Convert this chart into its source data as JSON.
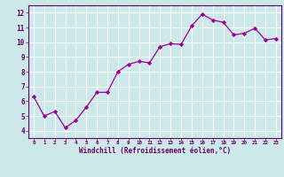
{
  "x": [
    0,
    1,
    2,
    3,
    4,
    5,
    6,
    7,
    8,
    9,
    10,
    11,
    12,
    13,
    14,
    15,
    16,
    17,
    18,
    19,
    20,
    21,
    22,
    23
  ],
  "y": [
    6.3,
    5.0,
    5.3,
    4.2,
    4.7,
    5.6,
    6.6,
    6.6,
    8.0,
    8.5,
    8.7,
    8.6,
    9.7,
    9.9,
    9.85,
    11.1,
    11.9,
    11.5,
    11.35,
    10.5,
    10.6,
    10.95,
    10.15,
    10.25
  ],
  "line_color": "#990099",
  "marker": "D",
  "marker_size": 2.2,
  "bg_color": "#cce8e8",
  "grid_color": "#ffffff",
  "ylabel_vals": [
    4,
    5,
    6,
    7,
    8,
    9,
    10,
    11,
    12
  ],
  "xlabel": "Windchill (Refroidissement éolien,°C)",
  "xlim": [
    -0.5,
    23.5
  ],
  "ylim": [
    3.5,
    12.5
  ],
  "line_color_border": "#660066",
  "tick_label_color": "#660066",
  "xlabel_color": "#660066",
  "tick_color": "#660066",
  "fontsize_xtick": 4.2,
  "fontsize_ytick": 5.5,
  "fontsize_xlabel": 5.5
}
